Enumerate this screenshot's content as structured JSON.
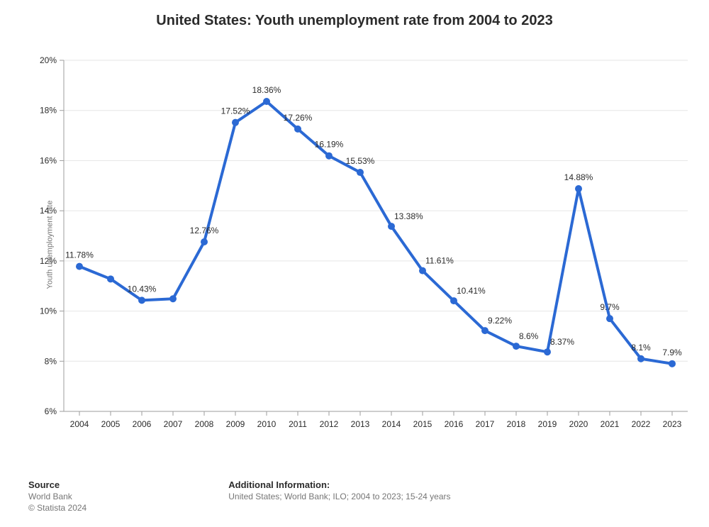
{
  "title": "United States: Youth unemployment rate from 2004 to 2023",
  "title_fontsize": 20,
  "chart": {
    "type": "line",
    "categories": [
      "2004",
      "2005",
      "2006",
      "2007",
      "2008",
      "2009",
      "2010",
      "2011",
      "2012",
      "2013",
      "2014",
      "2015",
      "2016",
      "2017",
      "2018",
      "2019",
      "2020",
      "2021",
      "2022",
      "2023"
    ],
    "values": [
      11.78,
      11.28,
      10.43,
      10.49,
      12.76,
      17.52,
      18.36,
      17.26,
      16.19,
      15.53,
      13.38,
      11.61,
      10.41,
      9.22,
      8.6,
      8.37,
      14.88,
      9.7,
      8.1,
      7.9
    ],
    "data_labels": [
      "11.78%",
      "",
      "10.43%",
      "",
      "12.76%",
      "17.52%",
      "18.36%",
      "17.26%",
      "16.19%",
      "15.53%",
      "13.38%",
      "11.61%",
      "10.41%",
      "9.22%",
      "8.6%",
      "8.37%",
      "14.88%",
      "9.7%",
      "8.1%",
      "7.9%"
    ],
    "line_color": "#2b69d4",
    "line_width": 4,
    "marker_radius": 5,
    "marker_color": "#2b69d4",
    "data_label_color": "#2b2b2b",
    "data_label_fontsize": 12,
    "ylim": [
      6,
      20
    ],
    "ytick_step": 2,
    "ytick_suffix": "%",
    "ylabel": "Youth unemployment rate",
    "ylabel_fontsize": 11,
    "background_color": "#ffffff",
    "plot_border_color": "#9e9e9e",
    "grid_color": "#e6e6e6",
    "tick_label_color": "#2b2b2b",
    "tick_label_fontsize": 12
  },
  "footer": {
    "source_heading": "Source",
    "source_line1": "World Bank",
    "source_line2": "© Statista 2024",
    "info_heading": "Additional Information:",
    "info_line": "United States; World Bank; ILO; 2004 to 2023; 15-24 years",
    "heading_fontsize": 13,
    "sub_fontsize": 12
  }
}
